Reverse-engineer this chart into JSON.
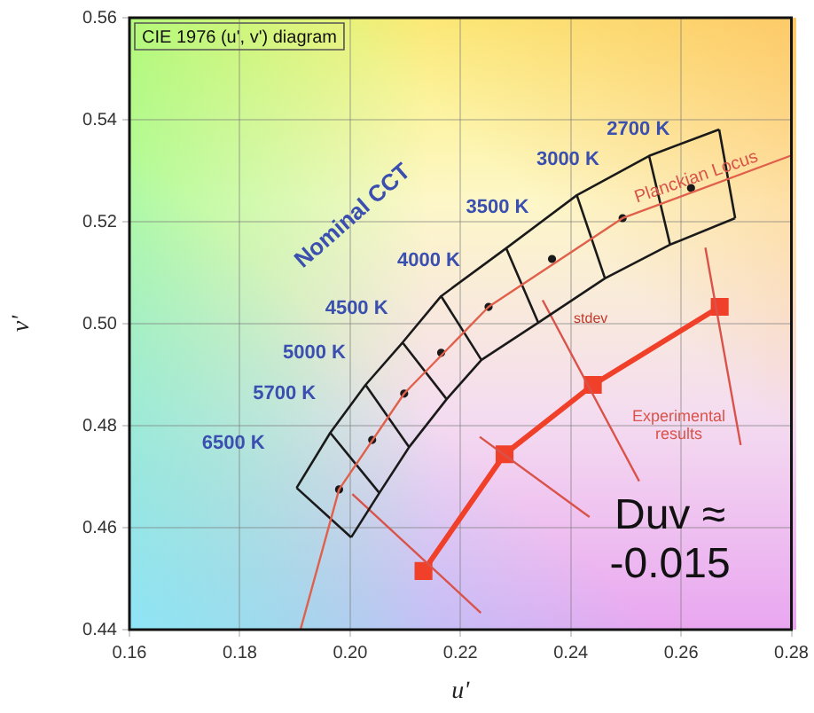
{
  "chart_data": {
    "type": "line",
    "title": "CIE 1976 (u', v') diagram",
    "xlabel": "u'",
    "ylabel": "v'",
    "xlim": [
      0.16,
      0.28
    ],
    "xticks": [
      {
        "value": 0.16,
        "label": "0.16"
      },
      {
        "value": 0.18,
        "label": "0.18"
      },
      {
        "value": 0.2,
        "label": "0.20"
      },
      {
        "value": 0.22,
        "label": "0.22"
      },
      {
        "value": 0.24,
        "label": "0.24"
      },
      {
        "value": 0.26,
        "label": "0.26"
      },
      {
        "value": 0.28,
        "label": "0.28"
      }
    ],
    "ylim": [
      0.44,
      0.56
    ],
    "yticks": [
      {
        "value": 0.44,
        "label": "0.44"
      },
      {
        "value": 0.46,
        "label": "0.46"
      },
      {
        "value": 0.48,
        "label": "0.48"
      },
      {
        "value": 0.5,
        "label": "0.50"
      },
      {
        "value": 0.52,
        "label": "0.52"
      },
      {
        "value": 0.54,
        "label": "0.54"
      },
      {
        "value": 0.56,
        "label": "0.56"
      }
    ],
    "grid": true,
    "legend": false,
    "line_style": "solid",
    "series": [
      {
        "color": "#e0604c",
        "marker": "none",
        "x": [
          0.191,
          0.198,
          0.2098,
          0.2251,
          0.2494,
          0.28
        ],
        "values": [
          0.44,
          0.4675,
          0.4863,
          0.5033,
          0.5207,
          0.533
        ]
      },
      {
        "color": "#1a1a1a",
        "marker": "none",
        "x": [
          0.1903,
          0.1964,
          0.2028,
          0.2095,
          0.2165,
          0.2283,
          0.2411,
          0.2542,
          0.2669,
          null,
          0.2002,
          0.2053,
          0.2107,
          0.2175,
          0.2238,
          0.2341,
          0.2462,
          0.258,
          0.2698,
          null,
          0.1903,
          0.2002,
          null,
          0.1964,
          0.2053,
          null,
          0.2028,
          0.2107,
          null,
          0.2095,
          0.2175,
          null,
          0.2165,
          0.2238,
          null,
          0.2283,
          0.2341,
          null,
          0.2411,
          0.2462,
          null,
          0.2542,
          0.258,
          null,
          0.2669,
          0.2698
        ],
        "values": [
          0.4678,
          0.4786,
          0.488,
          0.4963,
          0.5054,
          0.5148,
          0.5252,
          0.5329,
          0.5381,
          null,
          0.4581,
          0.4668,
          0.4758,
          0.4852,
          0.4929,
          0.5002,
          0.5089,
          0.5155,
          0.5207,
          null,
          0.4678,
          0.4581,
          null,
          0.4786,
          0.4668,
          null,
          0.488,
          0.4758,
          null,
          0.4963,
          0.4852,
          null,
          0.5054,
          0.4929,
          null,
          0.5148,
          0.5002,
          null,
          0.5252,
          0.5089,
          null,
          0.5329,
          0.5155,
          null,
          0.5381,
          0.5207
        ]
      },
      {
        "type": "scatter",
        "color": "#1a1a1a",
        "marker": "circle",
        "x": [
          0.2618,
          0.2494,
          0.2366,
          0.2251,
          0.2165,
          0.2098,
          0.204,
          0.198
        ],
        "values": [
          0.5266,
          0.5207,
          0.5127,
          0.5033,
          0.4943,
          0.4863,
          0.4772,
          0.4675
        ]
      },
      {
        "color": "#d9534a",
        "marker": "none",
        "x": [
          0.2004,
          0.2237,
          null,
          0.2235,
          0.2434,
          null,
          0.2349,
          0.2524,
          null,
          0.2644,
          0.2708
        ],
        "values": [
          0.4666,
          0.4433,
          null,
          0.4778,
          0.4621,
          null,
          0.5046,
          0.4691,
          null,
          0.5149,
          0.4762
        ]
      },
      {
        "color": "#f0402a",
        "marker": "square",
        "x": [
          0.2133,
          0.228,
          0.244,
          0.267
        ],
        "values": [
          0.4515,
          0.4744,
          0.488,
          0.5033
        ]
      }
    ],
    "annotations": [
      "2700 K",
      "3000 K",
      "3500 K",
      "4000 K",
      "4500 K",
      "5000 K",
      "5700 K",
      "6500 K",
      "Nominal CCT",
      "Planckian Locus",
      "stdev",
      "Experimental results",
      "Duv ≈ -0.015"
    ]
  }
}
